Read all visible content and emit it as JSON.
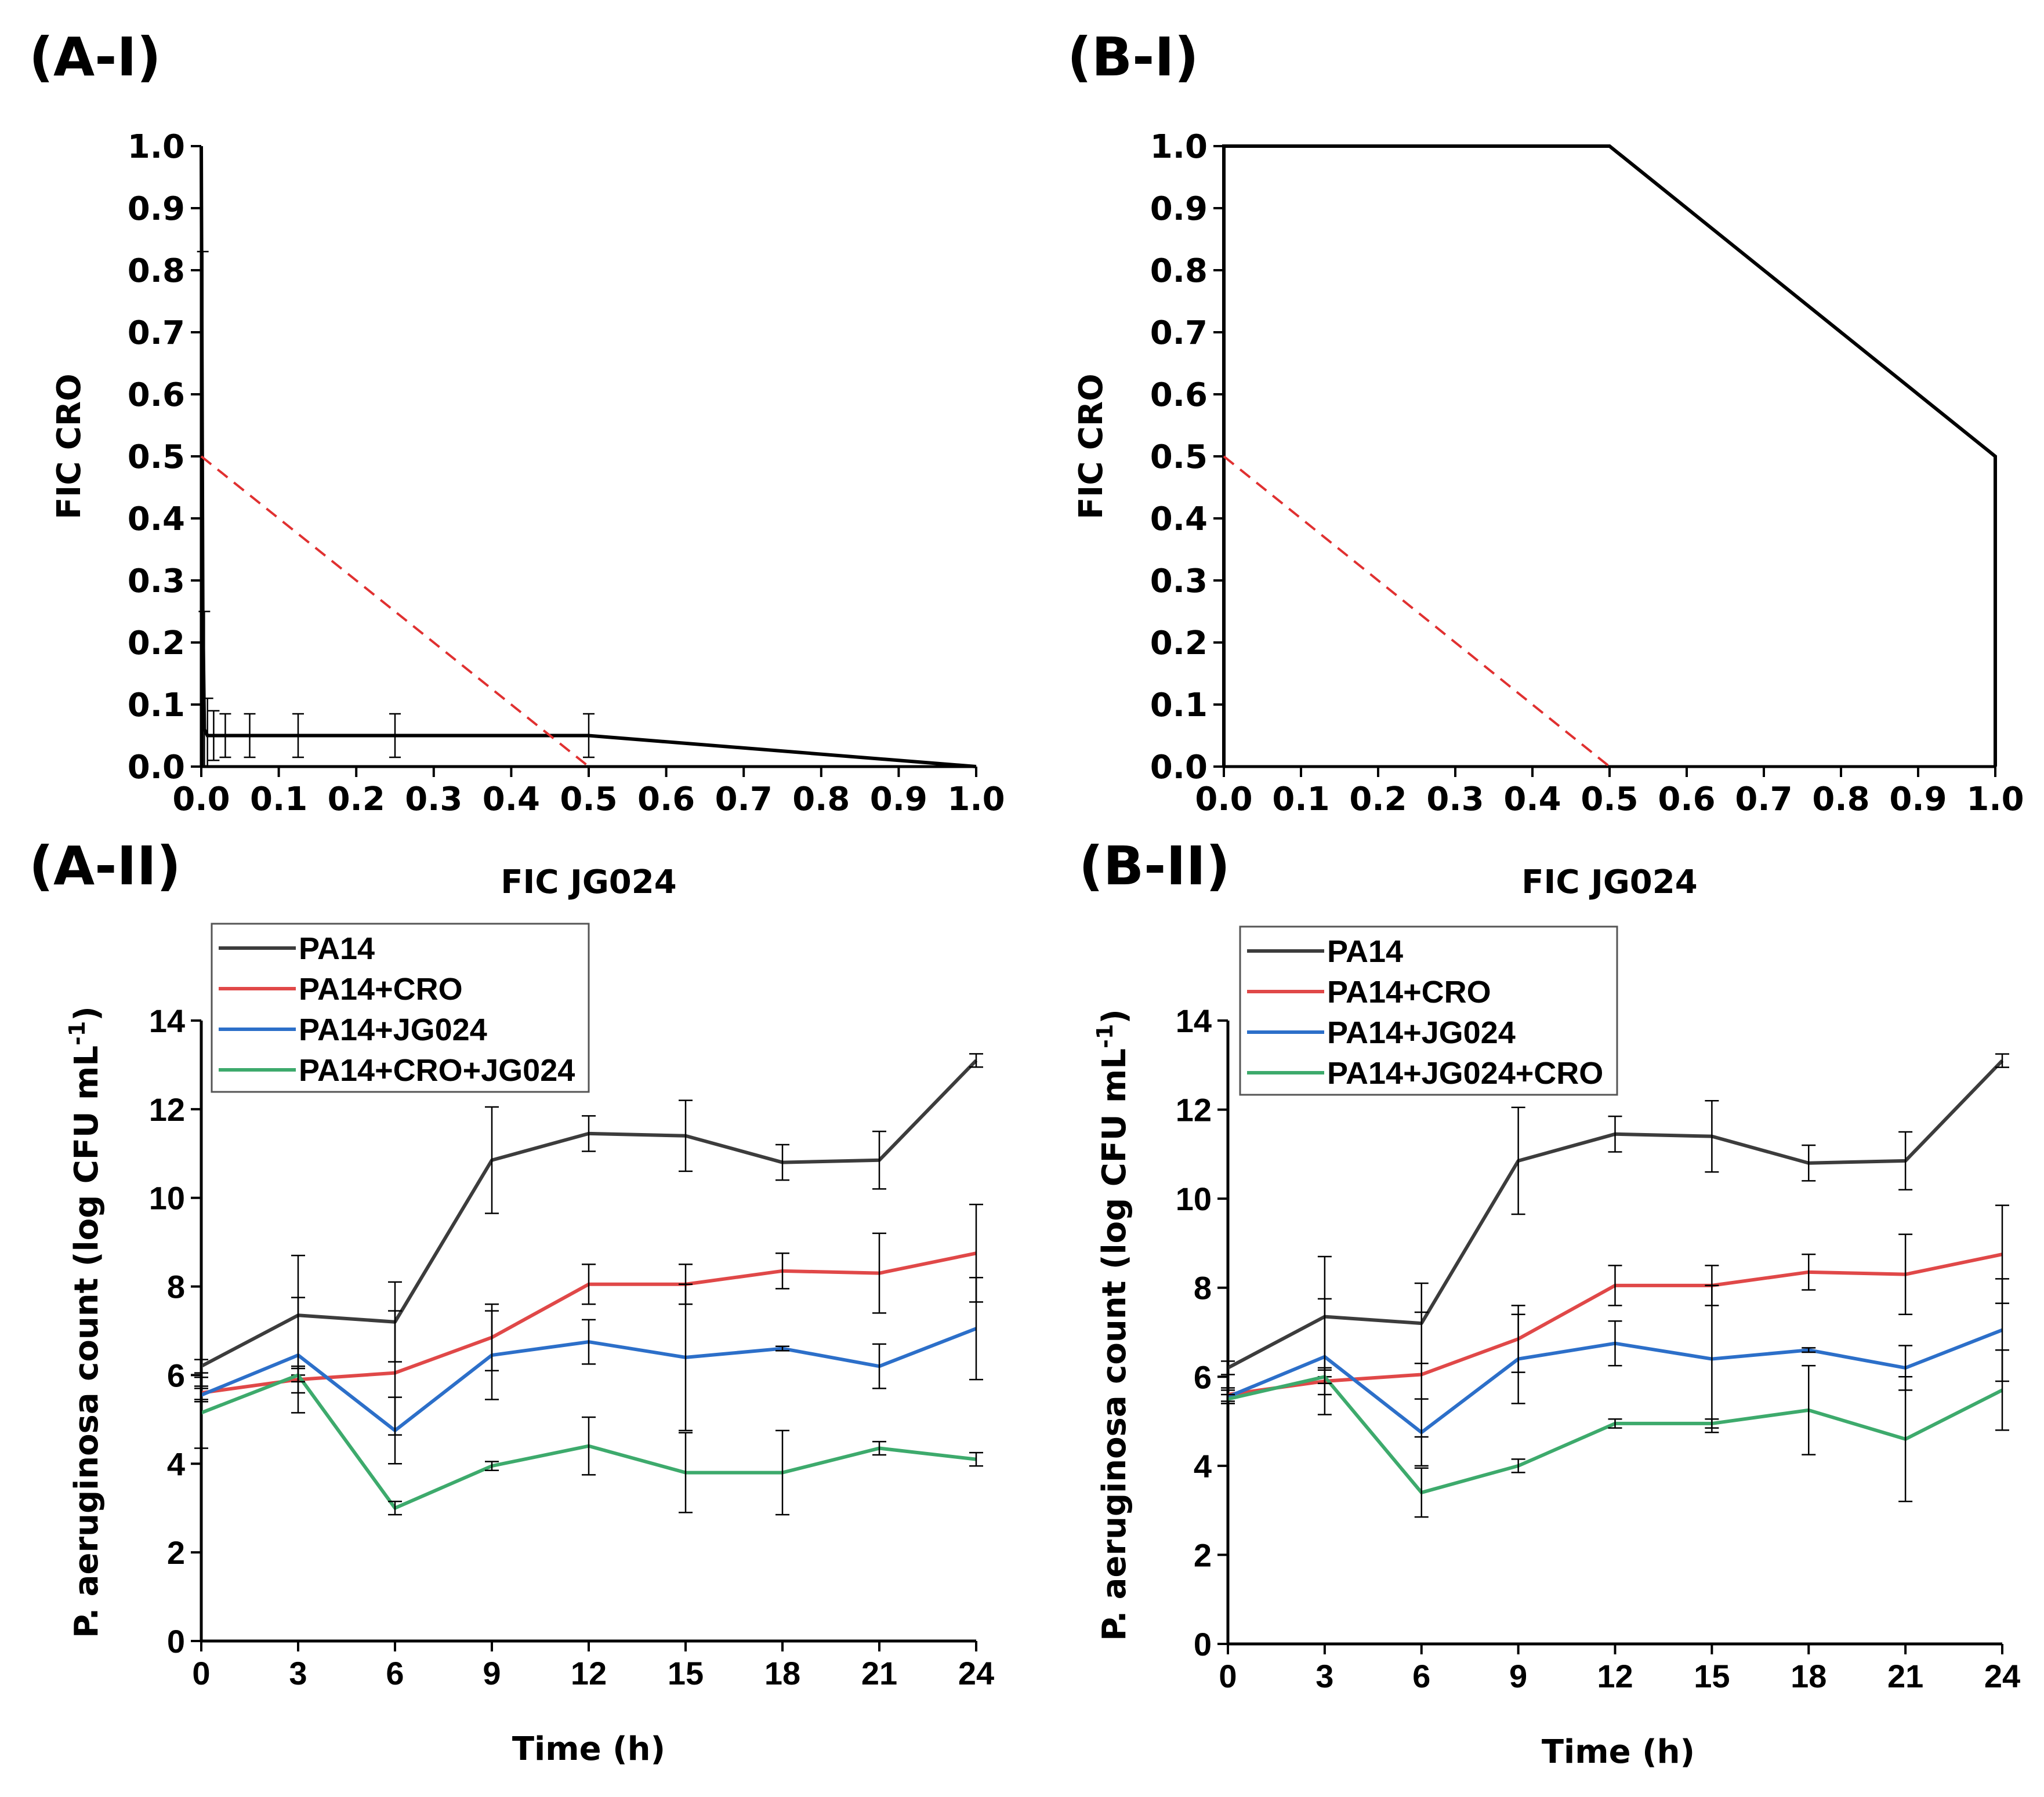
{
  "colors": {
    "PA14": "#3c3c3c",
    "PA14+CRO": "#e04848",
    "PA14+JG024": "#2c6fc9",
    "PA14+CRO+JG024": "#3daa6c",
    "isobologram": "#000000",
    "additivity": "#e03030"
  },
  "chart_data": [
    {
      "id": "A-I",
      "panel_label": "(A-I)",
      "type": "line",
      "xlabel": "FIC JG024",
      "ylabel": "FIC CRO",
      "xlim": [
        0,
        1.0
      ],
      "ylim": [
        0,
        1.0
      ],
      "xticks": [
        "0.0",
        "0.1",
        "0.2",
        "0.3",
        "0.4",
        "0.5",
        "0.6",
        "0.7",
        "0.8",
        "0.9",
        "1.0"
      ],
      "yticks": [
        "0.0",
        "0.1",
        "0.2",
        "0.3",
        "0.4",
        "0.5",
        "0.6",
        "0.7",
        "0.8",
        "0.9",
        "1.0"
      ],
      "series": [
        {
          "style": "solid",
          "color": "#000000",
          "x": [
            0.0,
            0.002,
            0.004,
            0.008,
            0.016,
            0.031,
            0.0625,
            0.125,
            0.25,
            0.5,
            1.0
          ],
          "y": [
            1.0,
            0.25,
            0.06,
            0.05,
            0.05,
            0.05,
            0.05,
            0.05,
            0.05,
            0.05,
            0.0
          ],
          "err": [
            0,
            0.58,
            0.19,
            0.06,
            0.04,
            0.035,
            0.035,
            0.035,
            0.035,
            0.035,
            0
          ]
        },
        {
          "style": "dashed",
          "color": "#e03030",
          "x": [
            0.0,
            0.5
          ],
          "y": [
            0.5,
            0.0
          ]
        }
      ]
    },
    {
      "id": "B-I",
      "panel_label": "(B-I)",
      "type": "line",
      "xlabel": "FIC JG024",
      "ylabel": "FIC CRO",
      "xlim": [
        0,
        1.0
      ],
      "ylim": [
        0,
        1.0
      ],
      "xticks": [
        "0.0",
        "0.1",
        "0.2",
        "0.3",
        "0.4",
        "0.5",
        "0.6",
        "0.7",
        "0.8",
        "0.9",
        "1.0"
      ],
      "yticks": [
        "0.0",
        "0.1",
        "0.2",
        "0.3",
        "0.4",
        "0.5",
        "0.6",
        "0.7",
        "0.8",
        "0.9",
        "1.0"
      ],
      "series": [
        {
          "style": "solid",
          "color": "#000000",
          "x": [
            0.0,
            0.0,
            0.5,
            1.0,
            1.0
          ],
          "y": [
            0.0,
            1.0,
            1.0,
            0.5,
            0.0
          ]
        },
        {
          "style": "dashed",
          "color": "#e03030",
          "x": [
            0.0,
            0.5
          ],
          "y": [
            0.5,
            0.0
          ]
        }
      ]
    },
    {
      "id": "A-II",
      "panel_label": "(A-II)",
      "type": "line",
      "xlabel": "Time (h)",
      "ylabel": "P. aeruginosa count (log CFU mL",
      "ylabel_sup": "-1",
      "ylabel_end": ")",
      "xlim": [
        0,
        24
      ],
      "ylim": [
        0,
        14
      ],
      "x": [
        0,
        3,
        6,
        9,
        12,
        15,
        18,
        21,
        24
      ],
      "xticks": [
        "0",
        "3",
        "6",
        "9",
        "12",
        "15",
        "18",
        "21",
        "24"
      ],
      "yticks": [
        "0",
        "2",
        "4",
        "6",
        "8",
        "10",
        "12",
        "14"
      ],
      "series": [
        {
          "name": "PA14",
          "color": "#3c3c3c",
          "values": [
            6.2,
            7.35,
            7.2,
            10.85,
            11.45,
            11.4,
            10.8,
            10.85,
            13.1
          ],
          "err": [
            0.15,
            1.35,
            0.9,
            1.2,
            0.4,
            0.8,
            0.4,
            0.65,
            0.15
          ]
        },
        {
          "name": "PA14+CRO",
          "color": "#e04848",
          "values": [
            5.6,
            5.9,
            6.05,
            6.85,
            8.05,
            8.05,
            8.35,
            8.3,
            8.75
          ],
          "err": [
            0.15,
            0.3,
            1.4,
            0.75,
            0.45,
            0.45,
            0.4,
            0.9,
            1.1
          ]
        },
        {
          "name": "PA14+JG024",
          "color": "#2c6fc9",
          "values": [
            5.55,
            6.45,
            4.75,
            6.45,
            6.75,
            6.4,
            6.6,
            6.2,
            7.05
          ],
          "err": [
            0.15,
            1.3,
            0.75,
            1.0,
            0.5,
            1.65,
            0.05,
            0.5,
            1.15
          ]
        },
        {
          "name": "PA14+CRO+JG024",
          "color": "#3daa6c",
          "values": [
            5.15,
            6.0,
            3.0,
            3.95,
            4.4,
            3.8,
            3.8,
            4.35,
            4.1
          ],
          "err": [
            0.8,
            0.15,
            0.15,
            0.1,
            0.65,
            0.9,
            0.95,
            0.15,
            0.15
          ]
        }
      ]
    },
    {
      "id": "B-II",
      "panel_label": "(B-II)",
      "type": "line",
      "xlabel": "Time (h)",
      "ylabel": "P. aeruginosa count (log CFU mL",
      "ylabel_sup": "-1",
      "ylabel_end": ")",
      "xlim": [
        0,
        24
      ],
      "ylim": [
        0,
        14
      ],
      "x": [
        0,
        3,
        6,
        9,
        12,
        15,
        18,
        21,
        24
      ],
      "xticks": [
        "0",
        "3",
        "6",
        "9",
        "12",
        "15",
        "18",
        "21",
        "24"
      ],
      "yticks": [
        "0",
        "2",
        "4",
        "6",
        "8",
        "10",
        "12",
        "14"
      ],
      "series": [
        {
          "name": "PA14",
          "color": "#3c3c3c",
          "values": [
            6.2,
            7.35,
            7.2,
            10.85,
            11.45,
            11.4,
            10.8,
            10.85,
            13.1
          ],
          "err": [
            0.15,
            1.35,
            0.9,
            1.2,
            0.4,
            0.8,
            0.4,
            0.65,
            0.15
          ]
        },
        {
          "name": "PA14+CRO",
          "color": "#e04848",
          "values": [
            5.6,
            5.9,
            6.05,
            6.85,
            8.05,
            8.05,
            8.35,
            8.3,
            8.75
          ],
          "err": [
            0.15,
            0.3,
            1.4,
            0.75,
            0.45,
            0.45,
            0.4,
            0.9,
            1.1
          ]
        },
        {
          "name": "PA14+JG024",
          "color": "#2c6fc9",
          "values": [
            5.55,
            6.45,
            4.75,
            6.4,
            6.75,
            6.4,
            6.6,
            6.2,
            7.05
          ],
          "err": [
            0.15,
            1.3,
            0.75,
            1.0,
            0.5,
            1.65,
            0.05,
            0.5,
            1.15
          ]
        },
        {
          "name": "PA14+JG024+CRO",
          "color": "#3daa6c",
          "values": [
            5.5,
            6.0,
            3.4,
            4.0,
            4.95,
            4.95,
            5.25,
            4.6,
            5.7
          ],
          "err": [
            0.1,
            0.15,
            0.55,
            0.15,
            0.1,
            0.1,
            1.0,
            1.4,
            0.9
          ]
        }
      ]
    }
  ]
}
